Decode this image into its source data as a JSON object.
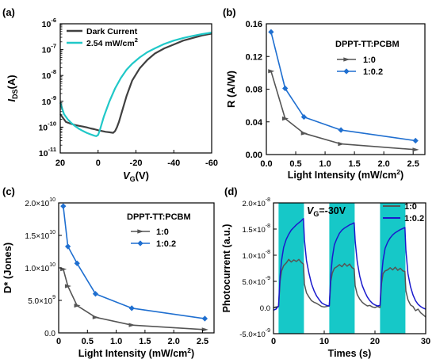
{
  "panels": [
    {
      "tag": "(a)",
      "chart_data": {
        "type": "line",
        "xlabel_main": "V",
        "xlabel_sub": "G",
        "xlabel_unit": "(V)",
        "ylabel_main": "I",
        "ylabel_sub": "DS",
        "ylabel_unit": "(A)",
        "x_reversed": true,
        "y_scale": "log",
        "xlim": [
          20,
          -60
        ],
        "ylim_exp": [
          -11,
          -6
        ],
        "xticks": [
          20,
          0,
          -20,
          -40,
          -60
        ],
        "xtick_labels": [
          "20",
          "0",
          "-20",
          "-40",
          "-60"
        ],
        "ytick_exps": [
          -11,
          -10,
          -9,
          -8,
          -7,
          -6
        ],
        "ytick_base": "10",
        "ytick_exp_labels": [
          "-11",
          "-10",
          "-9",
          "-8",
          "-7",
          "-6"
        ],
        "legend": "top-left",
        "series": [
          {
            "name": "Dark Current",
            "color": "#404040",
            "x": [
              20,
              17,
              14,
              12,
              10,
              8,
              6,
              4,
              2,
              0,
              -2,
              -4,
              -6,
              -8,
              -9,
              -10,
              -11,
              -13,
              -15,
              -18,
              -22,
              -26,
              -30,
              -35,
              -40,
              -45,
              -50,
              -55,
              -60
            ],
            "log10_y": [
              -9.5,
              -9.8,
              -9.88,
              -9.92,
              -9.95,
              -9.98,
              -10.01,
              -10.05,
              -10.08,
              -10.12,
              -10.15,
              -10.18,
              -10.2,
              -10.22,
              -10.15,
              -10.0,
              -9.8,
              -9.3,
              -8.8,
              -8.2,
              -7.72,
              -7.4,
              -7.15,
              -6.95,
              -6.8,
              -6.65,
              -6.55,
              -6.45,
              -6.38
            ]
          },
          {
            "name": "2.54 mW/cm",
            "name_sup": "2",
            "color": "#20c8c8",
            "x": [
              20,
              18,
              16,
              14,
              12,
              10,
              8,
              6,
              4,
              2,
              1,
              0,
              -1,
              -3,
              -6,
              -9,
              -12,
              -15,
              -18,
              -22,
              -26,
              -30,
              -35,
              -40,
              -45,
              -50,
              -55,
              -60
            ],
            "log10_y": [
              -9.05,
              -9.5,
              -9.7,
              -9.85,
              -9.97,
              -10.07,
              -10.15,
              -10.22,
              -10.28,
              -10.33,
              -10.35,
              -10.3,
              -10.1,
              -9.6,
              -9.0,
              -8.5,
              -8.1,
              -7.78,
              -7.55,
              -7.3,
              -7.1,
              -6.95,
              -6.78,
              -6.65,
              -6.55,
              -6.47,
              -6.4,
              -6.34
            ]
          }
        ]
      }
    },
    {
      "tag": "(b)",
      "chart_data": {
        "type": "line",
        "xlabel": "Light Intensity (mW/cm",
        "xlabel_sup": "2",
        "xlabel_end": ")",
        "ylabel": "R (A/W)",
        "xlim": [
          0,
          2.7
        ],
        "ylim": [
          0,
          0.16
        ],
        "xticks": [
          0.0,
          0.5,
          1.0,
          1.5,
          2.0,
          2.5
        ],
        "xtick_labels": [
          "0.0",
          "0.5",
          "1.0",
          "1.5",
          "2.0",
          "2.5"
        ],
        "yticks": [
          0.0,
          0.04,
          0.08,
          0.12,
          0.16
        ],
        "ytick_labels": [
          "0.00",
          "0.04",
          "0.08",
          "0.12",
          "0.16"
        ],
        "legend_title": "DPPT-TT:PCBM",
        "legend": "top-right",
        "series": [
          {
            "name": "1:0",
            "color": "#555555",
            "x": [
              0.08,
              0.32,
              0.64,
              1.27,
              2.54
            ],
            "y": [
              0.102,
              0.044,
              0.026,
              0.013,
              0.006
            ]
          },
          {
            "name": "1:0.2",
            "color": "#1f6fd0",
            "x": [
              0.08,
              0.32,
              0.64,
              1.27,
              2.54
            ],
            "y": [
              0.15,
              0.081,
              0.046,
              0.03,
              0.017
            ]
          }
        ]
      }
    },
    {
      "tag": "(c)",
      "chart_data": {
        "type": "line",
        "xlabel": "Light Intensity (mW/cm",
        "xlabel_sup": "2",
        "xlabel_end": ")",
        "ylabel": "D* (Jones)",
        "xlim": [
          0,
          2.7
        ],
        "ylim": [
          0,
          20000000000.0
        ],
        "xticks": [
          0,
          0.5,
          1.0,
          1.5,
          2.0,
          2.5
        ],
        "xtick_labels": [
          "0",
          "0.5",
          "1.0",
          "1.5",
          "2.0",
          "2.5"
        ],
        "yticks": [
          0,
          5000000000.0,
          10000000000.0,
          15000000000.0,
          20000000000.0
        ],
        "ytick_mantissa": [
          "0.0",
          "5.0×10",
          "1.0×10",
          "1.5×10",
          "2.0×10"
        ],
        "ytick_exps": [
          "",
          "9",
          "10",
          "10",
          "10"
        ],
        "legend_title": "DPPT-TT:PCBM",
        "legend": "top-right",
        "series": [
          {
            "name": "1:0",
            "color": "#555555",
            "x": [
              0.08,
              0.16,
              0.32,
              0.64,
              1.27,
              2.54
            ],
            "y": [
              9800000000.0,
              7200000000.0,
              4200000000.0,
              2400000000.0,
              1200000000.0,
              500000000.0
            ]
          },
          {
            "name": "1:0.2",
            "color": "#1f6fd0",
            "x": [
              0.08,
              0.16,
              0.32,
              0.64,
              1.27,
              2.54
            ],
            "y": [
              19500000000.0,
              13300000000.0,
              10700000000.0,
              6000000000.0,
              3800000000.0,
              2200000000.0
            ]
          }
        ]
      }
    },
    {
      "tag": "(d)",
      "annotation_main": "V",
      "annotation_sub": "G",
      "annotation_rest": "=-30V",
      "chart_data": {
        "type": "line",
        "xlabel": "Times (s)",
        "ylabel": "Photocurrent (a.u.)",
        "xlim": [
          0,
          30
        ],
        "ylim": [
          -5e-09,
          2e-08
        ],
        "xticks": [
          0,
          10,
          20,
          30
        ],
        "xtick_labels": [
          "0",
          "10",
          "20",
          "30"
        ],
        "yticks": [
          -5e-09,
          0,
          5e-09,
          1e-08,
          1.5e-08,
          2e-08
        ],
        "ytick_mantissa": [
          "-5.0×10",
          "0.0",
          "5.0×10",
          "1.0×10",
          "1.5×10",
          "2.0×10"
        ],
        "ytick_exps": [
          "-9",
          "",
          "-9",
          "-8",
          "-8",
          "-8"
        ],
        "light_on_intervals": [
          [
            1,
            6
          ],
          [
            11,
            16
          ],
          [
            21,
            26
          ]
        ],
        "shade_color": "#16c8c8",
        "legend": "top-right",
        "series": [
          {
            "name": "1:0",
            "color": "#555555",
            "x": [
              0,
              0.5,
              1.0,
              1.3,
              1.6,
              2.0,
              2.5,
              3.0,
              3.5,
              4.0,
              4.5,
              5.0,
              5.5,
              5.9,
              6.1,
              6.5,
              7.0,
              7.5,
              8.0,
              8.5,
              9.0,
              9.5,
              10.0,
              10.5,
              11.0,
              11.3,
              11.6,
              12.0,
              12.5,
              13.0,
              13.5,
              14.0,
              14.5,
              15.0,
              15.5,
              15.9,
              16.1,
              16.5,
              17.0,
              17.5,
              18.0,
              18.5,
              19.0,
              19.5,
              20.0,
              20.5,
              21.0,
              21.3,
              21.6,
              22.0,
              22.5,
              23.0,
              23.5,
              24.0,
              24.5,
              25.0,
              25.5,
              25.9,
              26.1,
              26.5,
              27.0,
              27.5,
              28.0,
              28.5,
              29.0,
              29.5,
              30.0
            ],
            "y": [
              0.0,
              1e-10,
              2e-10,
              5e-09,
              7e-09,
              8e-09,
              8.5e-09,
              9.2e-09,
              8.7e-09,
              9.1e-09,
              8.8e-09,
              9.2e-09,
              8.6e-09,
              8.3e-09,
              4.5e-09,
              2.8e-09,
              2e-09,
              1.3e-09,
              1e-09,
              8e-10,
              5e-10,
              2e-10,
              1e-10,
              2e-10,
              3e-10,
              5e-09,
              6.6e-09,
              7.5e-09,
              7.8e-09,
              8.2e-09,
              7.8e-09,
              8.4e-09,
              7.9e-09,
              8.3e-09,
              7.6e-09,
              7.4e-09,
              4.2e-09,
              2.5e-09,
              1.6e-09,
              1e-09,
              6e-10,
              3e-10,
              4e-10,
              1e-10,
              0.0,
              2e-10,
              0.0,
              4.6e-09,
              6.5e-09,
              7e-09,
              7.2e-09,
              7.6e-09,
              7.2e-09,
              7.7e-09,
              7.1e-09,
              7.5e-09,
              7e-09,
              6.9e-09,
              3.2e-09,
              1.5e-09,
              5e-10,
              2e-10,
              -6e-10,
              -3e-10,
              -1e-09,
              -1.4e-09,
              -1.8e-09
            ]
          },
          {
            "name": "1:0.2",
            "color": "#1a1acd",
            "x": [
              0,
              0.5,
              1.0,
              1.3,
              1.6,
              2.0,
              2.5,
              3.0,
              3.5,
              4.0,
              4.5,
              5.0,
              5.5,
              5.9,
              6.1,
              6.5,
              7.0,
              7.5,
              8.0,
              8.5,
              9.0,
              9.5,
              10.0,
              10.5,
              11.0,
              11.3,
              11.6,
              12.0,
              12.5,
              13.0,
              13.5,
              14.0,
              14.5,
              15.0,
              15.5,
              15.9,
              16.1,
              16.5,
              17.0,
              17.5,
              18.0,
              18.5,
              19.0,
              19.5,
              20.0,
              20.5,
              21.0,
              21.3,
              21.6,
              22.0,
              22.5,
              23.0,
              23.5,
              24.0,
              24.5,
              25.0,
              25.5,
              25.9,
              26.1,
              26.5,
              27.0,
              27.5,
              28.0,
              28.5,
              29.0,
              29.5,
              30.0
            ],
            "y": [
              -5e-10,
              -3e-10,
              3e-10,
              6e-09,
              9e-09,
              1.15e-08,
              1.3e-08,
              1.4e-08,
              1.48e-08,
              1.53e-08,
              1.58e-08,
              1.62e-08,
              1.66e-08,
              1.7e-08,
              1.3e-08,
              9e-09,
              6.5e-09,
              4.5e-09,
              3.2e-09,
              2.2e-09,
              1.5e-09,
              9e-10,
              6e-10,
              4e-10,
              3e-10,
              6.2e-09,
              9.5e-09,
              1.2e-08,
              1.32e-08,
              1.42e-08,
              1.48e-08,
              1.52e-08,
              1.55e-08,
              1.58e-08,
              1.6e-08,
              1.62e-08,
              1.28e-08,
              8.8e-09,
              6e-09,
              4.2e-09,
              3e-09,
              2e-09,
              1.3e-09,
              8e-10,
              5e-10,
              3e-10,
              4e-10,
              6e-09,
              9e-09,
              1.13e-08,
              1.25e-08,
              1.33e-08,
              1.39e-08,
              1.43e-08,
              1.46e-08,
              1.49e-08,
              1.51e-08,
              1.53e-08,
              1.1e-08,
              6.5e-09,
              4e-09,
              2.4e-09,
              1.3e-09,
              6e-10,
              2e-10,
              -1e-10,
              -3e-10
            ]
          }
        ]
      }
    }
  ]
}
